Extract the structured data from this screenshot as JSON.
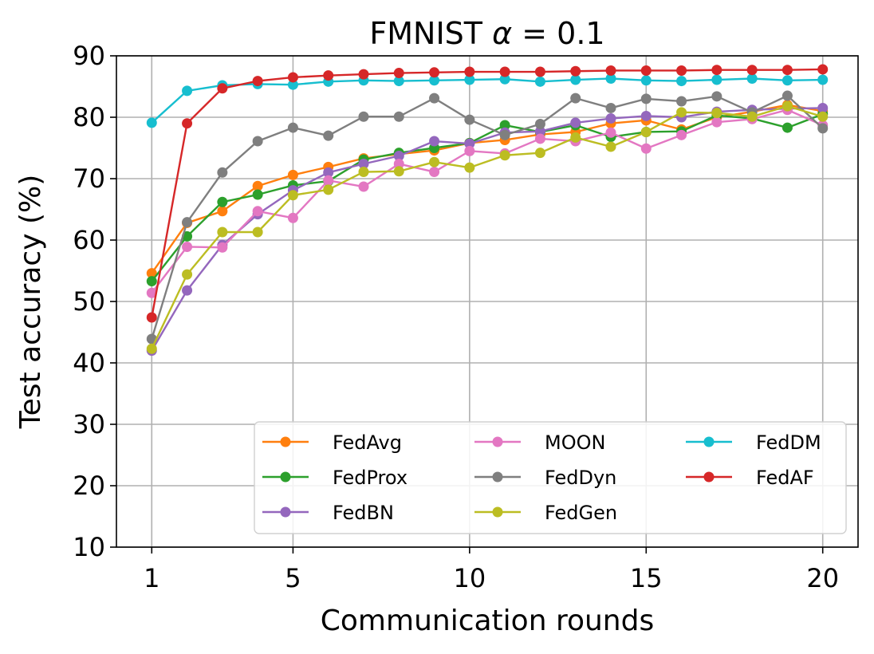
{
  "chart_data": {
    "type": "line",
    "title": "FMNIST α = 0.1",
    "title_main": "FMNIST ",
    "title_alpha": "α",
    "title_rest": " = 0.1",
    "xlabel": "Communication rounds",
    "ylabel": "Test accuracy (%)",
    "x": [
      1,
      2,
      3,
      4,
      5,
      6,
      7,
      8,
      9,
      10,
      11,
      12,
      13,
      14,
      15,
      16,
      17,
      18,
      19,
      20
    ],
    "xlim": [
      0,
      21
    ],
    "ylim": [
      10,
      90
    ],
    "xticks": [
      1,
      5,
      10,
      15,
      20
    ],
    "yticks": [
      10,
      20,
      30,
      40,
      50,
      60,
      70,
      80,
      90
    ],
    "grid": true,
    "legend_position": "lower-right",
    "legend_columns": 3,
    "series": [
      {
        "name": "FedAvg",
        "color": "#ff7f0e",
        "values": [
          54.6,
          62.8,
          64.7,
          68.8,
          70.6,
          71.9,
          73.3,
          74.0,
          74.6,
          75.8,
          76.3,
          77.2,
          77.6,
          79.0,
          79.5,
          78.0,
          80.0,
          80.9,
          82.0,
          81.0
        ]
      },
      {
        "name": "FedProx",
        "color": "#2ca02c",
        "values": [
          53.3,
          60.6,
          66.2,
          67.4,
          68.9,
          69.6,
          73.1,
          74.2,
          75.0,
          75.8,
          78.7,
          77.6,
          78.7,
          76.8,
          77.6,
          77.7,
          80.3,
          79.8,
          78.3,
          80.5
        ]
      },
      {
        "name": "FedBN",
        "color": "#9467bd",
        "values": [
          42.0,
          51.8,
          59.2,
          64.2,
          68.1,
          71.0,
          72.4,
          73.7,
          76.1,
          75.7,
          77.5,
          77.7,
          79.1,
          79.8,
          80.2,
          80.0,
          80.9,
          81.2,
          81.4,
          81.5
        ]
      },
      {
        "name": "MOON",
        "color": "#e377c2",
        "values": [
          51.4,
          58.9,
          58.8,
          64.7,
          63.6,
          69.7,
          68.7,
          72.4,
          71.1,
          74.5,
          74.1,
          76.5,
          76.1,
          77.5,
          74.9,
          77.1,
          79.2,
          79.7,
          81.2,
          78.7
        ]
      },
      {
        "name": "FedDyn",
        "color": "#7f7f7f",
        "values": [
          43.9,
          62.9,
          71.0,
          76.1,
          78.3,
          77.0,
          80.1,
          80.1,
          83.1,
          79.6,
          77.1,
          78.9,
          83.1,
          81.5,
          83.0,
          82.6,
          83.4,
          80.8,
          83.5,
          78.2
        ]
      },
      {
        "name": "FedGen",
        "color": "#bcbd22",
        "values": [
          42.3,
          54.4,
          61.3,
          61.3,
          67.3,
          68.2,
          71.1,
          71.2,
          72.7,
          71.8,
          73.8,
          74.2,
          76.7,
          75.2,
          77.6,
          80.8,
          80.7,
          80.1,
          81.8,
          80.1
        ]
      },
      {
        "name": "FedDM",
        "color": "#17becf",
        "values": [
          79.1,
          84.3,
          85.2,
          85.4,
          85.3,
          85.8,
          86.0,
          85.9,
          86.0,
          86.1,
          86.2,
          85.8,
          86.1,
          86.3,
          86.0,
          85.9,
          86.1,
          86.3,
          86.0,
          86.1
        ]
      },
      {
        "name": "FedAF",
        "color": "#d62728",
        "values": [
          47.4,
          79.0,
          84.7,
          85.9,
          86.5,
          86.8,
          87.0,
          87.2,
          87.3,
          87.4,
          87.4,
          87.4,
          87.5,
          87.6,
          87.6,
          87.6,
          87.7,
          87.7,
          87.7,
          87.8
        ]
      }
    ]
  }
}
